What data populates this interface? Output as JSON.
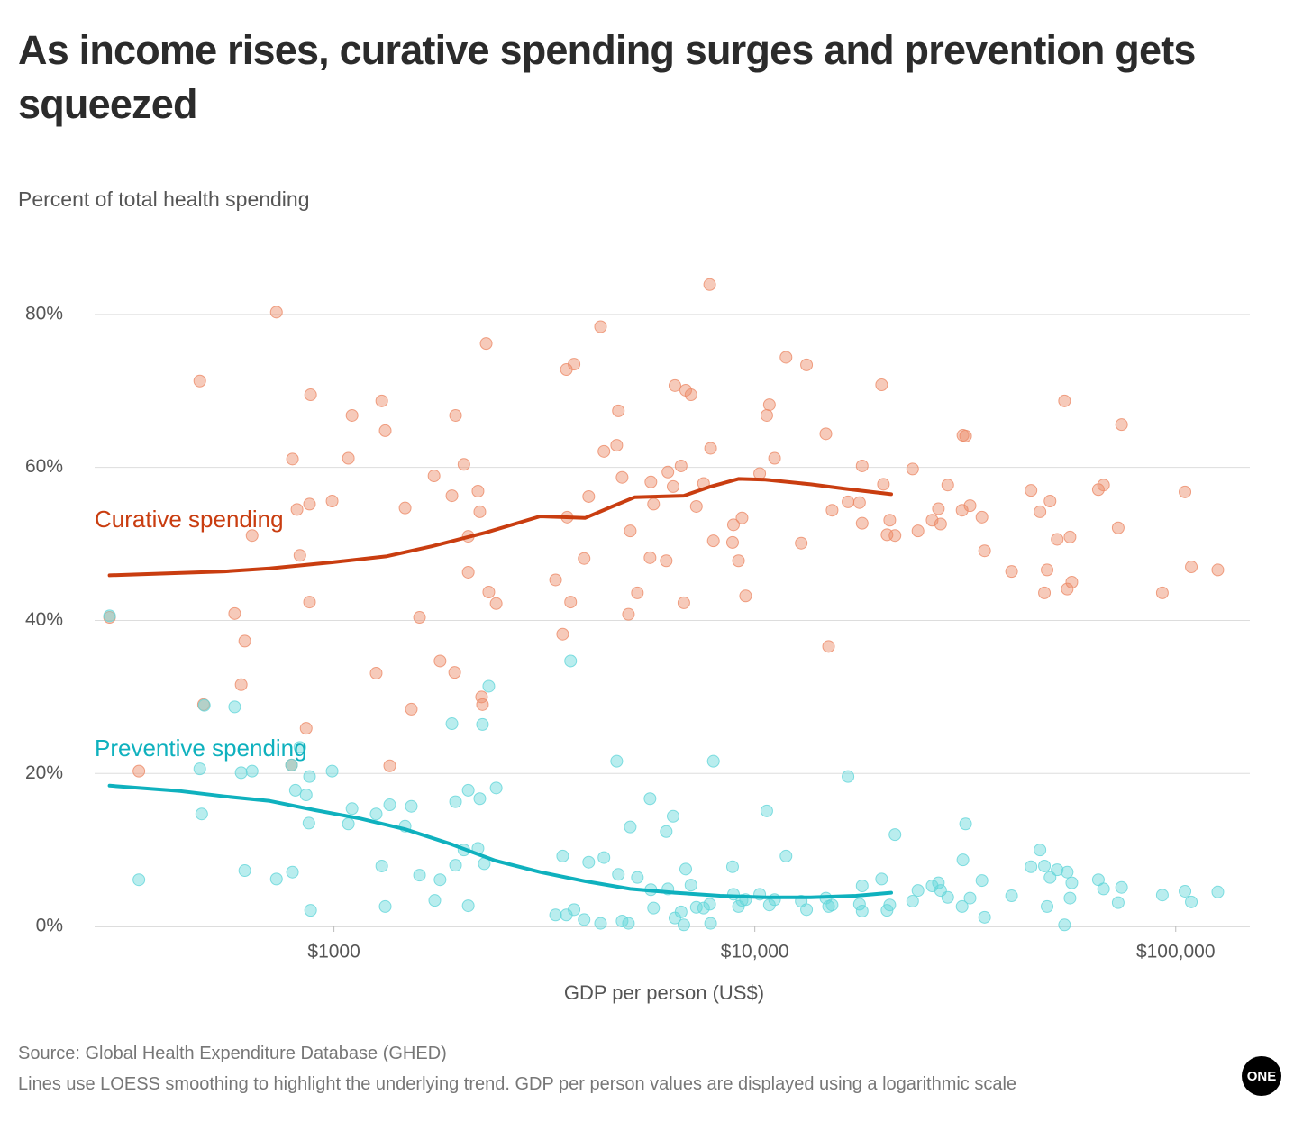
{
  "chart_data": {
    "type": "scatter",
    "title": "As income rises, curative spending surges and prevention gets squeezed",
    "subtitle": "Percent of total health spending",
    "x_label": "GDP per person (US$)",
    "source": "Source: Global Health Expenditure Database (GHED)",
    "note": "Lines use LOESS smoothing to highlight the underlying trend. GDP per person values are displayed using a logarithmic scale",
    "logo": "ONE",
    "xscale": "log",
    "grid": "y",
    "xlim": [
      270,
      150000
    ],
    "ylim": [
      0,
      88
    ],
    "xticks": [
      {
        "value": 1000,
        "label": "$1000"
      },
      {
        "value": 10000,
        "label": "$10,000"
      },
      {
        "value": 100000,
        "label": "$100,000"
      }
    ],
    "yticks": [
      {
        "value": 0,
        "label": "0%"
      },
      {
        "value": 20,
        "label": "20%"
      },
      {
        "value": 40,
        "label": "40%"
      },
      {
        "value": 60,
        "label": "60%"
      },
      {
        "value": 80,
        "label": "80%"
      }
    ],
    "series": [
      {
        "name": "Curative spending",
        "color": "#ec8a66",
        "line_color": "#c93d10",
        "x": [
          293,
          344,
          480,
          490,
          581,
          602,
          614,
          639,
          730,
          793,
          797,
          817,
          830,
          859,
          880,
          875,
          875,
          990,
          1082,
          1104,
          1260,
          1299,
          1324,
          1357,
          1476,
          1527,
          1597,
          1729,
          1787,
          1907,
          1936,
          1945,
          2036,
          2085,
          2085,
          2199,
          2221,
          2243,
          2254,
          2300,
          2333,
          2429,
          3362,
          3495,
          3567,
          3583,
          3650,
          3720,
          3930,
          4030,
          4300,
          4380,
          4697,
          4740,
          4838,
          5009,
          5058,
          5260,
          5636,
          5663,
          5746,
          6158,
          6215,
          6395,
          6458,
          6680,
          6782,
          6852,
          7051,
          7262,
          7555,
          7812,
          7851,
          7972,
          8853,
          8897,
          9145,
          9323,
          9508,
          10270,
          10675,
          10830,
          11140,
          11860,
          12890,
          13270,
          14750,
          14970,
          15260,
          16650,
          17730,
          17990,
          17990,
          20010,
          20210,
          20610,
          20920,
          21530,
          23710,
          24410,
          26380,
          27300,
          27630,
          28730,
          31220,
          31680,
          31080,
          32460,
          34640,
          35150,
          40740,
          45310,
          47590,
          48760,
          49480,
          50280,
          52290,
          54430,
          55240,
          56080,
          56640,
          65500,
          67380,
          73000,
          74360,
          92940,
          105200,
          108900,
          125900
        ],
        "values": [
          40.4,
          20.3,
          71.3,
          29,
          40.9,
          31.6,
          37.3,
          51.1,
          80.3,
          21.1,
          61.1,
          54.5,
          48.5,
          25.9,
          69.5,
          42.4,
          55.2,
          55.6,
          61.2,
          66.8,
          33.1,
          68.7,
          64.8,
          21,
          54.7,
          28.4,
          40.4,
          58.9,
          34.7,
          56.3,
          33.2,
          66.8,
          60.4,
          46.3,
          51,
          56.9,
          54.2,
          30,
          29,
          76.2,
          43.7,
          42.2,
          45.3,
          38.2,
          72.8,
          53.5,
          42.4,
          73.5,
          48.1,
          56.2,
          78.4,
          62.1,
          62.9,
          67.4,
          58.7,
          40.8,
          51.7,
          43.6,
          48.2,
          58.1,
          55.2,
          47.8,
          59.4,
          57.5,
          70.7,
          60.2,
          42.3,
          70.1,
          69.5,
          54.9,
          57.9,
          83.9,
          62.5,
          50.4,
          50.2,
          52.5,
          47.8,
          53.4,
          43.2,
          59.2,
          66.8,
          68.2,
          61.2,
          74.4,
          50.1,
          73.4,
          64.4,
          36.6,
          54.4,
          55.5,
          55.4,
          60.2,
          52.7,
          70.8,
          57.8,
          51.2,
          53.1,
          51.1,
          59.8,
          51.7,
          53.1,
          54.6,
          52.6,
          57.7,
          64.2,
          64.1,
          54.4,
          55,
          53.5,
          49.1,
          46.4,
          57,
          54.2,
          43.6,
          46.6,
          55.6,
          50.6,
          68.7,
          44.1,
          50.9,
          45,
          57.1,
          57.7,
          52.1,
          65.6,
          43.6,
          56.8,
          47,
          46.6
        ],
        "trend": {
          "x": [
            293,
            550,
            704,
            995,
            1337,
            1712,
            2300,
            3090,
            3955,
            4585,
            5180,
            6782,
            7851,
            9145,
            10590,
            13580,
            16490,
            21090
          ],
          "values": [
            45.9,
            46.4,
            46.8,
            47.6,
            48.4,
            49.7,
            51.5,
            53.6,
            53.4,
            54.9,
            56.1,
            56.3,
            57.5,
            58.5,
            58.4,
            57.8,
            57.2,
            56.5
          ]
        }
      },
      {
        "name": "Preventive spending",
        "color": "#63d6da",
        "line_color": "#0fb1be",
        "x": [
          293,
          344,
          480,
          485,
          492,
          581,
          602,
          614,
          639,
          730,
          793,
          797,
          810,
          830,
          859,
          872,
          880,
          875,
          990,
          1082,
          1104,
          1260,
          1299,
          1324,
          1357,
          1476,
          1527,
          1597,
          1736,
          1787,
          1907,
          1945,
          1945,
          2036,
          2085,
          2085,
          2199,
          2221,
          2254,
          2276,
          2333,
          2429,
          3362,
          3495,
          3567,
          3650,
          3720,
          3930,
          4030,
          4300,
          4380,
          4697,
          4740,
          4838,
          5009,
          5058,
          5260,
          5636,
          5663,
          5746,
          6158,
          6215,
          6395,
          6458,
          6680,
          6782,
          6852,
          7051,
          7262,
          7555,
          7812,
          7851,
          7972,
          8853,
          8897,
          9145,
          9323,
          9508,
          10270,
          10675,
          10830,
          11140,
          11860,
          12890,
          13270,
          14750,
          14970,
          15260,
          16650,
          17730,
          17990,
          17990,
          20010,
          20610,
          20920,
          21530,
          23710,
          24410,
          26380,
          27300,
          27630,
          28730,
          31080,
          31220,
          31680,
          32460,
          34640,
          35150,
          40740,
          45310,
          47590,
          48760,
          49480,
          50280,
          52290,
          54430,
          55240,
          56080,
          56640,
          65500,
          67380,
          73000,
          74360,
          92940,
          105200,
          108900,
          125900
        ],
        "values": [
          40.6,
          6.1,
          20.6,
          14.7,
          28.9,
          28.7,
          20.1,
          7.3,
          20.3,
          6.2,
          21.1,
          7.1,
          17.8,
          23.4,
          17.2,
          13.5,
          2.1,
          19.6,
          20.3,
          13.4,
          15.4,
          14.7,
          7.9,
          2.6,
          15.9,
          13.1,
          15.7,
          6.7,
          3.4,
          6.1,
          26.5,
          8,
          16.3,
          10,
          17.8,
          2.7,
          10.2,
          16.7,
          26.4,
          8.2,
          31.4,
          18.1,
          1.5,
          9.2,
          1.5,
          34.7,
          2.2,
          0.9,
          8.4,
          0.4,
          9,
          21.6,
          6.8,
          0.7,
          0.4,
          13,
          6.4,
          16.7,
          4.8,
          2.4,
          12.4,
          4.9,
          14.4,
          1.1,
          1.9,
          0.2,
          7.5,
          5.4,
          2.5,
          2.4,
          2.9,
          0.4,
          21.6,
          7.8,
          4.2,
          2.6,
          3.4,
          3.5,
          4.2,
          15.1,
          2.8,
          3.5,
          9.2,
          3.3,
          2.2,
          3.7,
          2.6,
          2.8,
          19.6,
          2.9,
          2,
          5.3,
          6.2,
          2.1,
          2.8,
          12,
          3.3,
          4.7,
          5.3,
          5.7,
          4.7,
          3.8,
          2.6,
          8.7,
          13.4,
          3.7,
          6,
          1.2,
          4,
          7.8,
          10,
          7.9,
          2.6,
          6.4,
          7.4,
          0.2,
          7.1,
          3.7,
          5.7,
          6.1,
          4.9,
          3.1,
          5.1,
          4.1,
          4.6,
          3.2,
          4.5
        ],
        "trend": {
          "x": [
            293,
            431,
            550,
            704,
            902,
            1154,
            1476,
            1888,
            2417,
            3090,
            3955,
            5058,
            6458,
            8267,
            10590,
            13580,
            17380,
            21090
          ],
          "values": [
            18.4,
            17.7,
            17,
            16.4,
            15.2,
            14.1,
            12.7,
            10.8,
            8.6,
            7.1,
            5.9,
            4.9,
            4.4,
            4,
            3.8,
            3.8,
            4,
            4.4
          ]
        }
      }
    ]
  }
}
